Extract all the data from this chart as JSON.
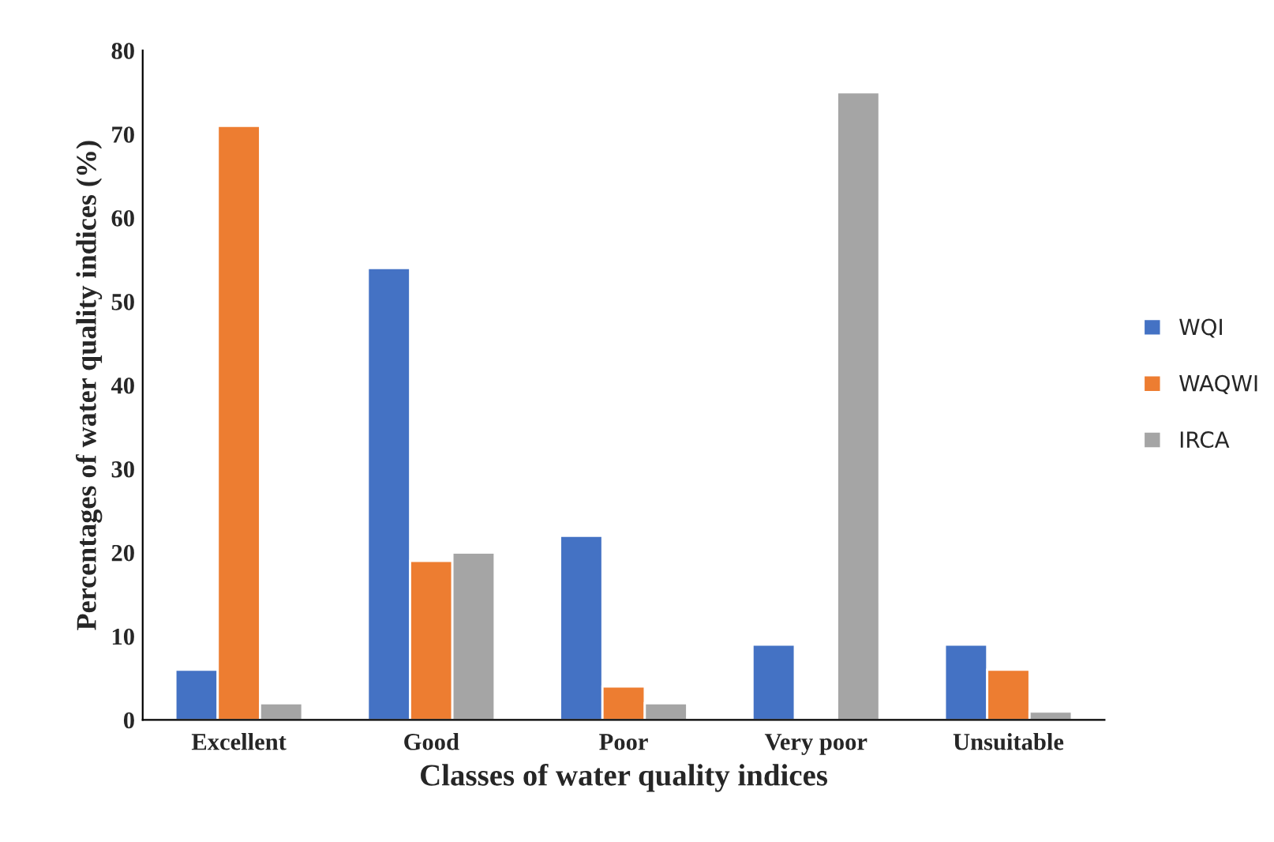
{
  "chart_data": {
    "type": "bar",
    "xlabel": "Classes of water quality indices",
    "ylabel": "Percentages of water quality indices (%)",
    "categories": [
      "Excellent",
      "Good",
      "Poor",
      "Very poor",
      "Unsuitable"
    ],
    "series": [
      {
        "name": "WQI",
        "color": "#4472c4",
        "values": [
          6,
          54,
          22,
          9,
          9
        ]
      },
      {
        "name": "WAQWI",
        "color": "#ed7d31",
        "values": [
          71,
          19,
          4,
          null,
          6
        ]
      },
      {
        "name": "IRCA",
        "color": "#a5a5a5",
        "values": [
          2,
          20,
          2,
          75,
          1
        ]
      }
    ],
    "ylim": [
      0,
      80
    ],
    "yticks": [
      0,
      10,
      20,
      30,
      40,
      50,
      60,
      70,
      80
    ],
    "grid": false,
    "legend": "right"
  }
}
